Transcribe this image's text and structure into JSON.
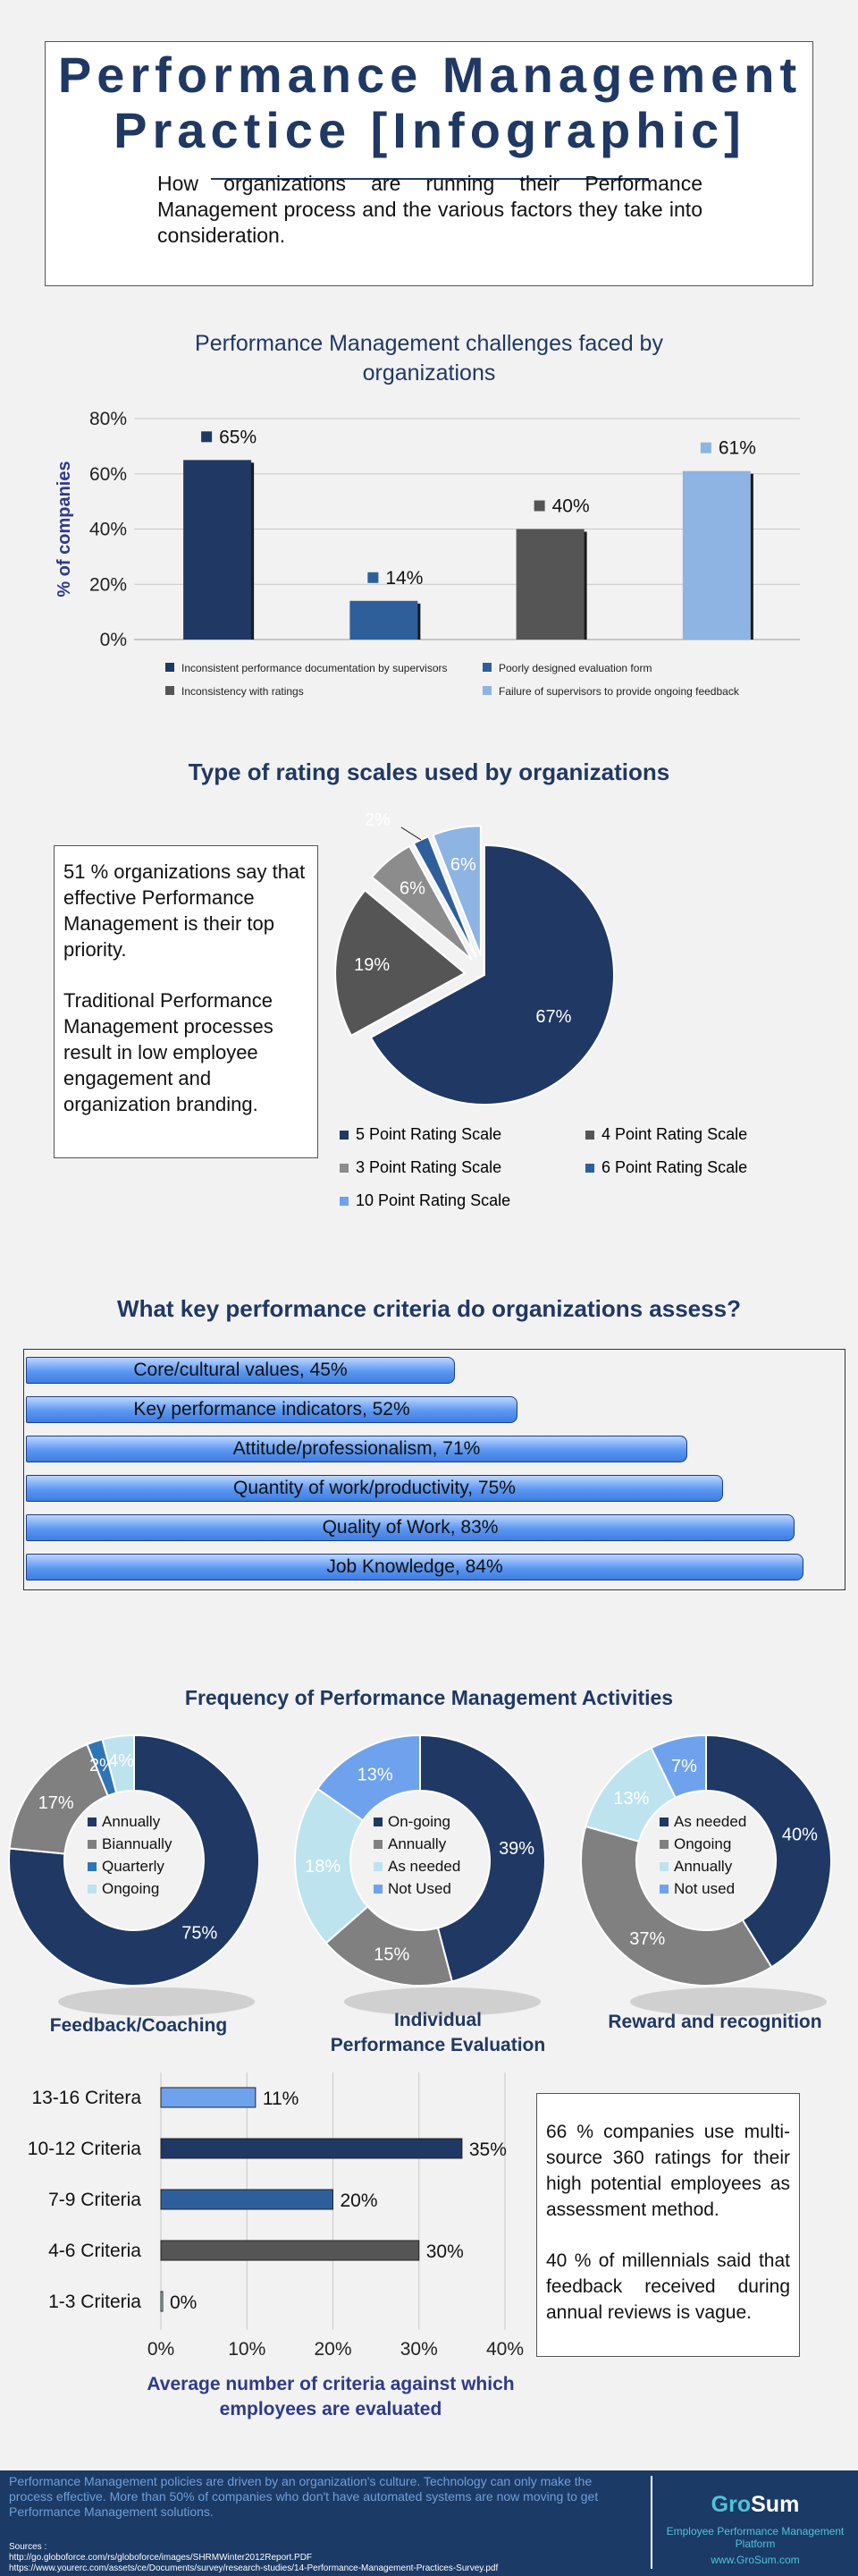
{
  "header": {
    "title_line1": "Performance Management",
    "title_line2": "Practice [Infographic]",
    "subtitle": "How organizations are running their Performance Management process and the various factors they take into consideration."
  },
  "challenges": {
    "title_line1": "Performance Management challenges faced by",
    "title_line2": "organizations",
    "chart_data": {
      "type": "bar",
      "title": "Performance Management challenges faced by organizations",
      "ylabel": "% of companies",
      "ylim": [
        0,
        80
      ],
      "yticks": [
        "0%",
        "20%",
        "40%",
        "60%",
        "80%"
      ],
      "categories": [
        "Inconsistent performance documentation by supervisors",
        "Poorly designed evaluation form",
        "Inconsistency with ratings",
        "Failure of supervisors to provide ongoing feedback"
      ],
      "values": [
        65,
        14,
        40,
        61
      ],
      "labels": [
        "65%",
        "14%",
        "40%",
        "61%"
      ],
      "colors": [
        "#1f3864",
        "#2e5f9a",
        "#555555",
        "#8db4e2"
      ],
      "grid": true,
      "legend": "bottom"
    }
  },
  "rating": {
    "title": "Type of rating scales used by organizations",
    "note1": "51 % organizations say that effective Performance Management is their top priority.",
    "note2": "Traditional Performance Management processes result in low employee engagement and organization branding.",
    "chart_data": {
      "type": "pie",
      "categories": [
        "5 Point Rating Scale",
        "4 Point Rating Scale",
        "3 Point Rating Scale",
        "6 Point Rating Scale",
        "10 Point Rating Scale"
      ],
      "values": [
        67,
        19,
        6,
        2,
        6
      ],
      "labels": [
        "67%",
        "19%",
        "6%",
        "2%",
        "6%"
      ],
      "colors": [
        "#1f3864",
        "#555555",
        "#8c8c8c",
        "#2e5f9a",
        "#8db4e2"
      ],
      "legend": "bottom"
    }
  },
  "criteria": {
    "title": "What key performance criteria do organizations assess?",
    "chart_data": {
      "type": "bar",
      "orientation": "horizontal",
      "categories": [
        "Core/cultural values",
        "Key performance indicators",
        "Attitude/professionalism",
        "Quantity of work/productivity",
        "Quality of Work",
        "Job Knowledge"
      ],
      "values": [
        45,
        52,
        71,
        75,
        83,
        84
      ],
      "labels": [
        "Core/cultural values, 45%",
        "Key performance indicators, 52%",
        "Attitude/professionalism, 71%",
        "Quantity of work/productivity, 75%",
        "Quality of Work, 83%",
        "Job Knowledge, 84%"
      ]
    }
  },
  "frequency": {
    "title": "Frequency of Performance Management Activities",
    "charts": [
      {
        "type": "pie",
        "title": "Feedback/Coaching",
        "categories": [
          "Annually",
          "Biannually",
          "Quarterly",
          "Ongoing"
        ],
        "values": [
          75,
          17,
          2,
          4
        ],
        "labels": [
          "75%",
          "17%",
          "2%",
          "4%"
        ],
        "colors": [
          "#1f3864",
          "#808080",
          "#2e75b6",
          "#bde3ef"
        ]
      },
      {
        "type": "pie",
        "title_line1": "Individual",
        "title_line2": "Performance Evaluation",
        "categories": [
          "On-going",
          "Annually",
          "As needed",
          "Not Used"
        ],
        "values": [
          39,
          15,
          18,
          13
        ],
        "labels": [
          "39%",
          "15%",
          "18%",
          "13%"
        ],
        "colors": [
          "#1f3864",
          "#808080",
          "#bde3ef",
          "#6fa2ec"
        ]
      },
      {
        "type": "pie",
        "title": "Reward and recognition",
        "categories": [
          "As needed",
          "Ongoing",
          "Annually",
          "Not used"
        ],
        "values": [
          40,
          37,
          13,
          7
        ],
        "labels": [
          "40%",
          "37%",
          "13%",
          "7%"
        ],
        "colors": [
          "#1f3864",
          "#808080",
          "#bde3ef",
          "#6fa2ec"
        ]
      }
    ]
  },
  "avg_criteria": {
    "title_line1": "Average number of criteria against which",
    "title_line2": "employees are evaluated",
    "chart_data": {
      "type": "bar",
      "orientation": "horizontal",
      "categories": [
        "13-16 Critera",
        "10-12 Criteria",
        "7-9 Criteria",
        "4-6 Criteria",
        "1-3 Criteria"
      ],
      "values": [
        11,
        35,
        20,
        30,
        0
      ],
      "labels": [
        "11%",
        "35%",
        "20%",
        "30%",
        "0%"
      ],
      "xlim": [
        0,
        40
      ],
      "xticks": [
        "0%",
        "10%",
        "20%",
        "30%",
        "40%"
      ],
      "colors": [
        "#6fa2ec",
        "#1f3864",
        "#2e5f9a",
        "#555555",
        "#bde3ef"
      ]
    },
    "note1": "66 % companies use multi-source 360 ratings for their high potential employees as assessment method.",
    "note2": "40 % of millennials said that feedback received during annual reviews is vague."
  },
  "footer": {
    "text": "Performance Management policies are driven by an organization's culture. Technology can only make the process effective. More than 50% of companies who don't have automated systems are now moving to get Performance Management solutions.",
    "sources_label": "Sources :",
    "source1": "http://go.globoforce.com/rs/globoforce/images/SHRMWinter2012Report.PDF",
    "source2": "https://www.yourerc.com/assets/ce/Documents/survey/research-studies/14-Performance-Management-Practices-Survey.pdf",
    "brand_gro": "Gro",
    "brand_sum": "Sum",
    "brand_tagline": "Employee Performance Management Platform",
    "brand_url": "www.GroSum.com"
  }
}
